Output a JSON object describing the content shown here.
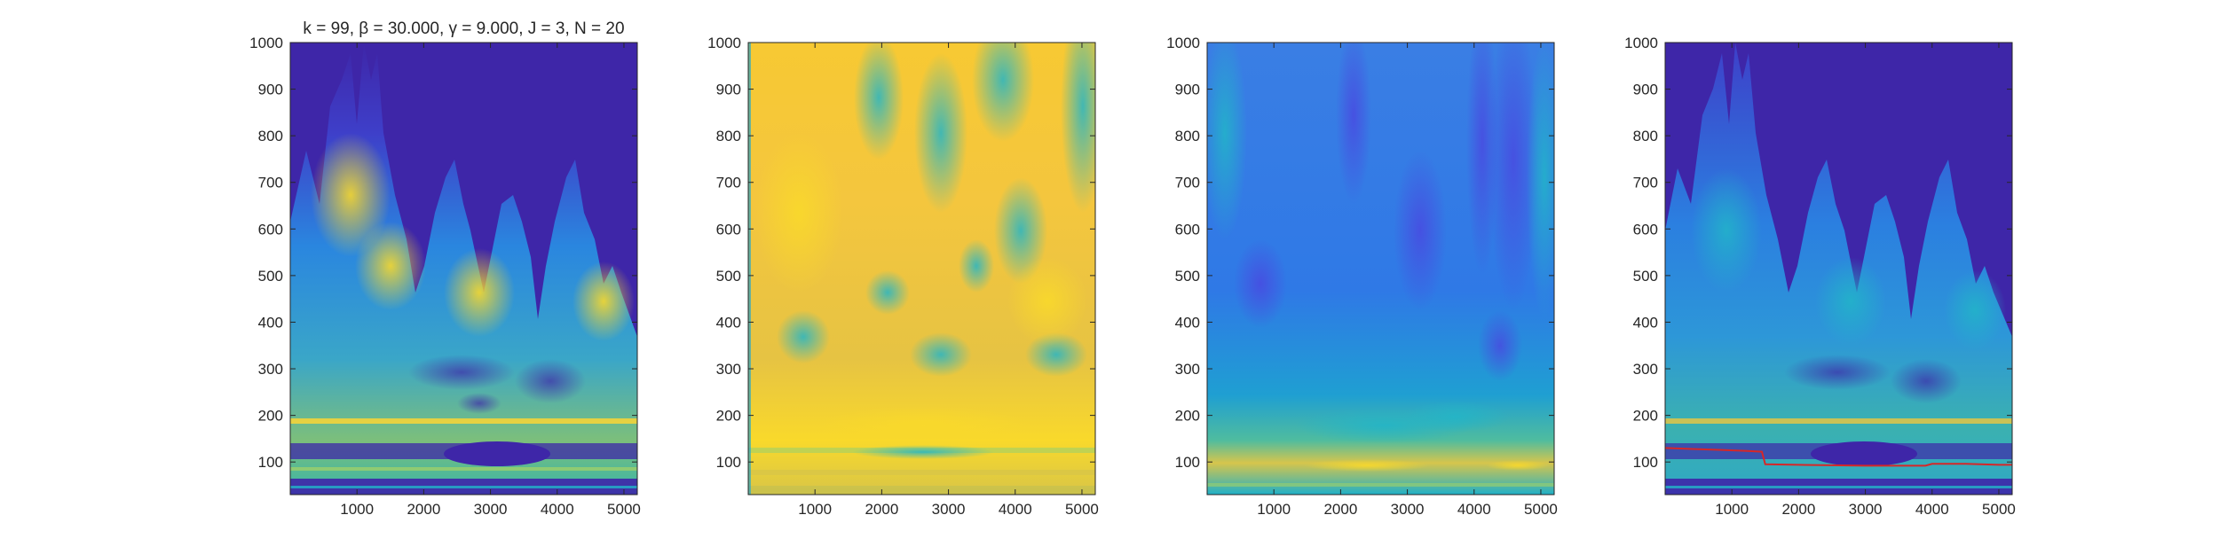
{
  "chart_data": [
    {
      "type": "heatmap",
      "title": "k = 99, β = 30.000, γ = 9.000, J = 3, N = 20",
      "xlabel": "",
      "ylabel": "",
      "xlim": [
        0,
        5200
      ],
      "ylim": [
        30,
        1000
      ],
      "xticks": [
        1000,
        2000,
        3000,
        4000,
        5000
      ],
      "yticks": [
        100,
        200,
        300,
        400,
        500,
        600,
        700,
        800,
        900,
        1000
      ],
      "colormap": "parula",
      "background_color": "#3e26a8",
      "grid": false,
      "legend": "none"
    },
    {
      "type": "heatmap",
      "title": "",
      "xlabel": "",
      "ylabel": "",
      "xlim": [
        0,
        5200
      ],
      "ylim": [
        30,
        1000
      ],
      "xticks": [
        1000,
        2000,
        3000,
        4000,
        5000
      ],
      "yticks": [
        100,
        200,
        300,
        400,
        500,
        600,
        700,
        800,
        900,
        1000
      ],
      "colormap": "parula",
      "grid": false,
      "legend": "none"
    },
    {
      "type": "heatmap",
      "title": "",
      "xlabel": "",
      "ylabel": "",
      "xlim": [
        0,
        5200
      ],
      "ylim": [
        30,
        1000
      ],
      "xticks": [
        1000,
        2000,
        3000,
        4000,
        5000
      ],
      "yticks": [
        100,
        200,
        300,
        400,
        500,
        600,
        700,
        800,
        900,
        1000
      ],
      "colormap": "parula",
      "grid": false,
      "legend": "none"
    },
    {
      "type": "heatmap",
      "title": "",
      "xlabel": "",
      "ylabel": "",
      "xlim": [
        0,
        5200
      ],
      "ylim": [
        30,
        1000
      ],
      "xticks": [
        1000,
        2000,
        3000,
        4000,
        5000
      ],
      "yticks": [
        100,
        200,
        300,
        400,
        500,
        600,
        700,
        800,
        900,
        1000
      ],
      "colormap": "parula",
      "background_color": "#3e26a8",
      "grid": false,
      "legend": "none",
      "overlay_line": {
        "color": "#d62728",
        "x": [
          0,
          400,
          800,
          1200,
          1450,
          1500,
          2000,
          2500,
          3000,
          3500,
          3900,
          4000,
          4500,
          5000,
          5200
        ],
        "y": [
          130,
          128,
          126,
          124,
          122,
          95,
          94,
          93,
          92,
          92,
          92,
          96,
          96,
          94,
          94
        ]
      }
    }
  ]
}
